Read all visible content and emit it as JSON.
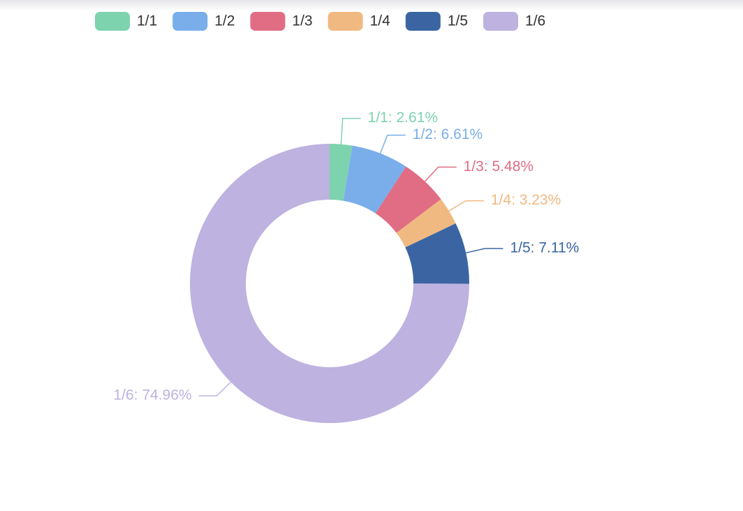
{
  "chart_data": {
    "type": "pie",
    "categories": [
      "1/1",
      "1/2",
      "1/3",
      "1/4",
      "1/5",
      "1/6"
    ],
    "values": [
      2.61,
      6.61,
      5.48,
      3.23,
      7.11,
      74.96
    ],
    "value_labels": [
      "1/1: 2.61%",
      "1/2: 6.61%",
      "1/3: 5.48%",
      "1/4: 3.23%",
      "1/5: 7.11%",
      "1/6: 74.96%"
    ],
    "colors": [
      "#7dd3ae",
      "#7aaeea",
      "#e06d84",
      "#f0b981",
      "#3a65a2",
      "#bdb2e0"
    ],
    "legend": "top"
  }
}
